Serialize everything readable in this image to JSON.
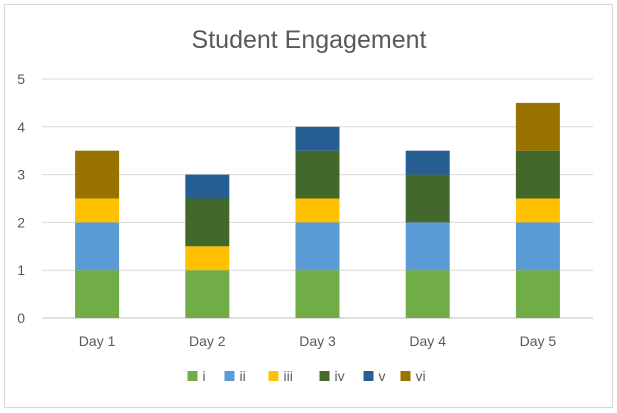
{
  "chart_data": {
    "type": "bar",
    "stacked": true,
    "title": "Student Engagement",
    "xlabel": "",
    "ylabel": "",
    "categories": [
      "Day 1",
      "Day 2",
      "Day 3",
      "Day 4",
      "Day 5"
    ],
    "series": [
      {
        "name": "i",
        "color": "#70ad47",
        "values": [
          1,
          1,
          1,
          1,
          1
        ]
      },
      {
        "name": "ii",
        "color": "#5b9bd5",
        "values": [
          1,
          0,
          1,
          1,
          1
        ]
      },
      {
        "name": "iii",
        "color": "#ffc000",
        "values": [
          0.5,
          0.5,
          0.5,
          0,
          0.5
        ]
      },
      {
        "name": "iv",
        "color": "#43682b",
        "values": [
          0,
          1,
          1,
          1,
          1
        ]
      },
      {
        "name": "v",
        "color": "#255e91",
        "values": [
          0,
          0.5,
          0.5,
          0.5,
          0
        ]
      },
      {
        "name": "vi",
        "color": "#997300",
        "values": [
          1,
          0,
          0,
          0,
          1
        ]
      }
    ],
    "ylim": [
      0,
      5
    ],
    "yticks": [
      0,
      1,
      2,
      3,
      4,
      5
    ],
    "grid": true,
    "legend_position": "bottom"
  }
}
